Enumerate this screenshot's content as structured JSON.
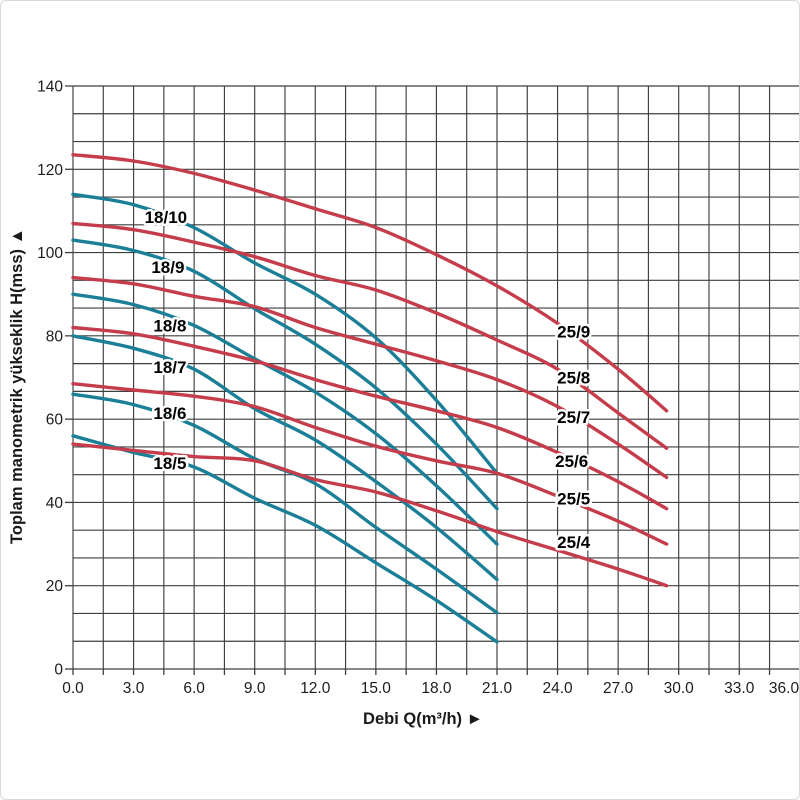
{
  "page": {
    "background": "#ffffff",
    "frame_border_color": "#d9d9d9"
  },
  "chart_data": {
    "type": "line",
    "title": "",
    "xlabel": "Debi Q(m³/h) ►",
    "ylabel": "Toplam manometrik yükseklik H(mss) ▲",
    "xlim": [
      0,
      36
    ],
    "ylim": [
      0,
      140
    ],
    "x_grid_step": 1.5,
    "y_grid_step": 6.667,
    "grid_on": true,
    "grid_color": "#3f3f3f",
    "background_color": "#ffffff",
    "legend_position": "none",
    "x_tick_values": [
      0,
      3,
      6,
      9,
      12,
      15,
      18,
      21,
      24,
      27,
      30,
      33,
      36
    ],
    "x_tick_labels": [
      "0.0",
      "3.0",
      "6.0",
      "9.0",
      "12.0",
      "15.0",
      "18.0",
      "21.0",
      "24.0",
      "27.0",
      "30.0",
      "33.0",
      "36.0"
    ],
    "y_tick_values": [
      0,
      20,
      40,
      60,
      80,
      100,
      120,
      140
    ],
    "y_tick_labels": [
      "0",
      "20",
      "40",
      "60",
      "80",
      "100",
      "120",
      "140"
    ],
    "series_colors": {
      "series_18": "#1b7f98",
      "series_25": "#c53c4a"
    },
    "series": [
      {
        "name": "18/10",
        "color": "#1b7f98",
        "label": {
          "text": "18/10",
          "q": 4.6,
          "h": 108.5
        },
        "points": [
          [
            0,
            114
          ],
          [
            3,
            111.5
          ],
          [
            6,
            106
          ],
          [
            9,
            97.5
          ],
          [
            12,
            90
          ],
          [
            15,
            79.5
          ],
          [
            18,
            64.5
          ],
          [
            21,
            47
          ]
        ]
      },
      {
        "name": "18/9",
        "color": "#1b7f98",
        "label": {
          "text": "18/9",
          "q": 4.7,
          "h": 96.5
        },
        "points": [
          [
            0,
            103
          ],
          [
            3,
            100.5
          ],
          [
            6,
            95.5
          ],
          [
            9,
            86.5
          ],
          [
            12,
            78
          ],
          [
            15,
            67.5
          ],
          [
            18,
            54
          ],
          [
            21,
            38.5
          ]
        ]
      },
      {
        "name": "18/8",
        "color": "#1b7f98",
        "label": {
          "text": "18/8",
          "q": 4.8,
          "h": 82.5
        },
        "points": [
          [
            0,
            90
          ],
          [
            3,
            87.5
          ],
          [
            6,
            82.5
          ],
          [
            9,
            74.5
          ],
          [
            12,
            66.5
          ],
          [
            15,
            56.5
          ],
          [
            18,
            44
          ],
          [
            21,
            30
          ]
        ]
      },
      {
        "name": "18/7",
        "color": "#1b7f98",
        "label": {
          "text": "18/7",
          "q": 4.8,
          "h": 72.5
        },
        "points": [
          [
            0,
            80
          ],
          [
            3,
            77
          ],
          [
            6,
            72
          ],
          [
            9,
            62.5
          ],
          [
            12,
            55
          ],
          [
            15,
            45
          ],
          [
            18,
            34
          ],
          [
            21,
            21.5
          ]
        ]
      },
      {
        "name": "18/6",
        "color": "#1b7f98",
        "label": {
          "text": "18/6",
          "q": 4.8,
          "h": 61.5
        },
        "points": [
          [
            0,
            66
          ],
          [
            3,
            63.5
          ],
          [
            6,
            58.5
          ],
          [
            9,
            50.5
          ],
          [
            12,
            44.5
          ],
          [
            15,
            34
          ],
          [
            18,
            24
          ],
          [
            21,
            13.5
          ]
        ]
      },
      {
        "name": "18/5",
        "color": "#1b7f98",
        "label": {
          "text": "18/5",
          "q": 4.8,
          "h": 49.5
        },
        "points": [
          [
            0,
            56
          ],
          [
            3,
            52
          ],
          [
            6,
            48.5
          ],
          [
            9,
            41
          ],
          [
            12,
            34.5
          ],
          [
            15,
            25.5
          ],
          [
            18,
            16.5
          ],
          [
            21,
            6.5
          ]
        ]
      },
      {
        "name": "25/9",
        "color": "#c53c4a",
        "label": {
          "text": "25/9",
          "q": 24.8,
          "h": 81
        },
        "points": [
          [
            0,
            123.5
          ],
          [
            3,
            122
          ],
          [
            6,
            119
          ],
          [
            9,
            115
          ],
          [
            12,
            110.5
          ],
          [
            15,
            106
          ],
          [
            18,
            99.5
          ],
          [
            21,
            92
          ],
          [
            24,
            83
          ],
          [
            27,
            72
          ],
          [
            29.4,
            62
          ]
        ]
      },
      {
        "name": "25/8",
        "color": "#c53c4a",
        "label": {
          "text": "25/8",
          "q": 24.8,
          "h": 70
        },
        "points": [
          [
            0,
            107
          ],
          [
            3,
            105.5
          ],
          [
            6,
            102.5
          ],
          [
            9,
            99
          ],
          [
            12,
            94.5
          ],
          [
            15,
            91
          ],
          [
            18,
            85.5
          ],
          [
            21,
            79
          ],
          [
            24,
            72
          ],
          [
            27,
            61.5
          ],
          [
            29.4,
            53
          ]
        ]
      },
      {
        "name": "25/7",
        "color": "#c53c4a",
        "label": {
          "text": "25/7",
          "q": 24.8,
          "h": 60.5
        },
        "points": [
          [
            0,
            94
          ],
          [
            3,
            92.5
          ],
          [
            6,
            89.5
          ],
          [
            9,
            87
          ],
          [
            12,
            82
          ],
          [
            15,
            78
          ],
          [
            18,
            74
          ],
          [
            21,
            69.5
          ],
          [
            24,
            63
          ],
          [
            27,
            54
          ],
          [
            29.4,
            46
          ]
        ]
      },
      {
        "name": "25/6",
        "color": "#c53c4a",
        "label": {
          "text": "25/6",
          "q": 24.7,
          "h": 50
        },
        "points": [
          [
            0,
            82
          ],
          [
            3,
            80.5
          ],
          [
            6,
            77.5
          ],
          [
            9,
            74
          ],
          [
            12,
            69.5
          ],
          [
            15,
            65.5
          ],
          [
            18,
            62
          ],
          [
            21,
            58
          ],
          [
            24,
            52
          ],
          [
            27,
            45
          ],
          [
            29.4,
            38.5
          ]
        ]
      },
      {
        "name": "25/5",
        "color": "#c53c4a",
        "label": {
          "text": "25/5",
          "q": 24.8,
          "h": 41
        },
        "points": [
          [
            0,
            68.5
          ],
          [
            3,
            67
          ],
          [
            6,
            65.5
          ],
          [
            9,
            63
          ],
          [
            12,
            58
          ],
          [
            15,
            53.5
          ],
          [
            18,
            50
          ],
          [
            21,
            47
          ],
          [
            24,
            41.5
          ],
          [
            27,
            35.5
          ],
          [
            29.4,
            30
          ]
        ]
      },
      {
        "name": "25/4",
        "color": "#c53c4a",
        "label": {
          "text": "25/4",
          "q": 24.8,
          "h": 30.5
        },
        "points": [
          [
            0,
            54
          ],
          [
            3,
            52.5
          ],
          [
            6,
            51
          ],
          [
            9,
            50
          ],
          [
            12,
            45.5
          ],
          [
            15,
            42.5
          ],
          [
            18,
            38
          ],
          [
            21,
            33
          ],
          [
            24,
            28.5
          ],
          [
            27,
            24
          ],
          [
            29.4,
            20
          ]
        ]
      }
    ]
  }
}
